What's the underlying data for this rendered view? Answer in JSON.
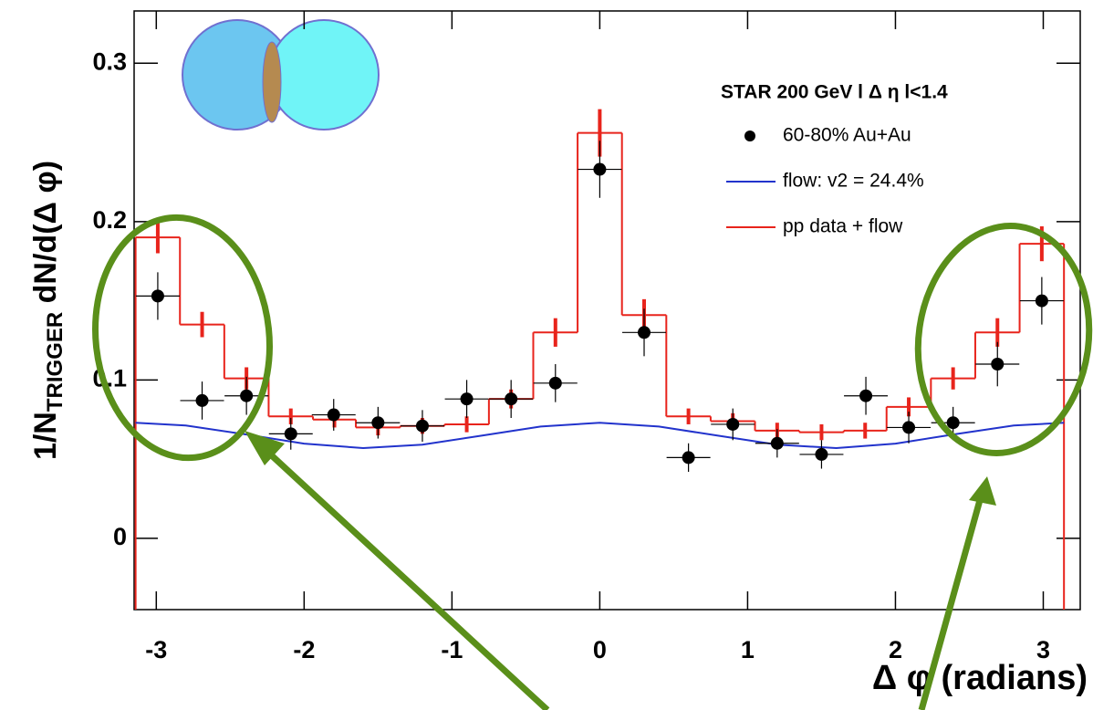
{
  "chart_data": {
    "type": "combo",
    "xlabel": "Δ φ (radians)",
    "ylabel": "1/N",
    "ylabel_sub": "TRIGGER",
    "ylabel_rest": " dN/d(Δ φ)",
    "legend_title": "STAR 200 GeV l Δ η l<1.4",
    "legend": "upper right",
    "xlim": [
      -3.15,
      3.25
    ],
    "ylim": [
      -0.045,
      0.333
    ],
    "xticks": [
      -3,
      -2,
      -1,
      0,
      1,
      2,
      3
    ],
    "yticks": [
      0,
      0.1,
      0.2,
      0.3
    ],
    "series": [
      {
        "name": "60-80% Au+Au",
        "type": "scatter",
        "color": "#000000",
        "x": [
          -2.99,
          -2.69,
          -2.39,
          -2.09,
          -1.8,
          -1.5,
          -1.2,
          -0.9,
          -0.6,
          -0.3,
          0,
          0.3,
          0.6,
          0.9,
          1.2,
          1.5,
          1.8,
          2.09,
          2.39,
          2.69,
          2.99
        ],
        "values": [
          0.153,
          0.087,
          0.09,
          0.066,
          0.078,
          0.073,
          0.071,
          0.088,
          0.088,
          0.098,
          0.233,
          0.13,
          0.051,
          0.072,
          0.06,
          0.053,
          0.09,
          0.07,
          0.073,
          0.11,
          0.15
        ],
        "errors": [
          0.015,
          0.012,
          0.012,
          0.01,
          0.01,
          0.01,
          0.01,
          0.012,
          0.012,
          0.012,
          0.018,
          0.015,
          0.009,
          0.01,
          0.009,
          0.009,
          0.012,
          0.01,
          0.01,
          0.014,
          0.015
        ]
      },
      {
        "name": "flow: v2 = 24.4%",
        "type": "line",
        "color": "#2233cc",
        "x": [
          -3.14,
          -2.8,
          -2.4,
          -2.0,
          -1.6,
          -1.2,
          -0.8,
          -0.4,
          0,
          0.4,
          0.8,
          1.2,
          1.6,
          2.0,
          2.4,
          2.8,
          3.14
        ],
        "values": [
          0.073,
          0.0712,
          0.0657,
          0.0598,
          0.057,
          0.0591,
          0.0648,
          0.0706,
          0.073,
          0.0706,
          0.0648,
          0.0591,
          0.057,
          0.0598,
          0.0657,
          0.0712,
          0.073
        ]
      },
      {
        "name": "pp data + flow",
        "type": "histogram",
        "color": "#e8241c",
        "bins": [
          -3.14,
          -2.84,
          -2.54,
          -2.24,
          -1.94,
          -1.65,
          -1.35,
          -1.05,
          -0.75,
          -0.45,
          -0.15,
          0.15,
          0.45,
          0.75,
          1.05,
          1.35,
          1.65,
          1.94,
          2.24,
          2.54,
          2.84,
          3.14
        ],
        "values": [
          0.19,
          0.135,
          0.101,
          0.077,
          0.075,
          0.07,
          0.071,
          0.072,
          0.088,
          0.13,
          0.256,
          0.141,
          0.077,
          0.074,
          0.068,
          0.067,
          0.068,
          0.083,
          0.101,
          0.13,
          0.186
        ],
        "errors": [
          0.01,
          0.008,
          0.007,
          0.005,
          0.005,
          0.005,
          0.005,
          0.005,
          0.006,
          0.009,
          0.015,
          0.01,
          0.005,
          0.005,
          0.005,
          0.005,
          0.005,
          0.006,
          0.007,
          0.009,
          0.011
        ]
      }
    ]
  }
}
